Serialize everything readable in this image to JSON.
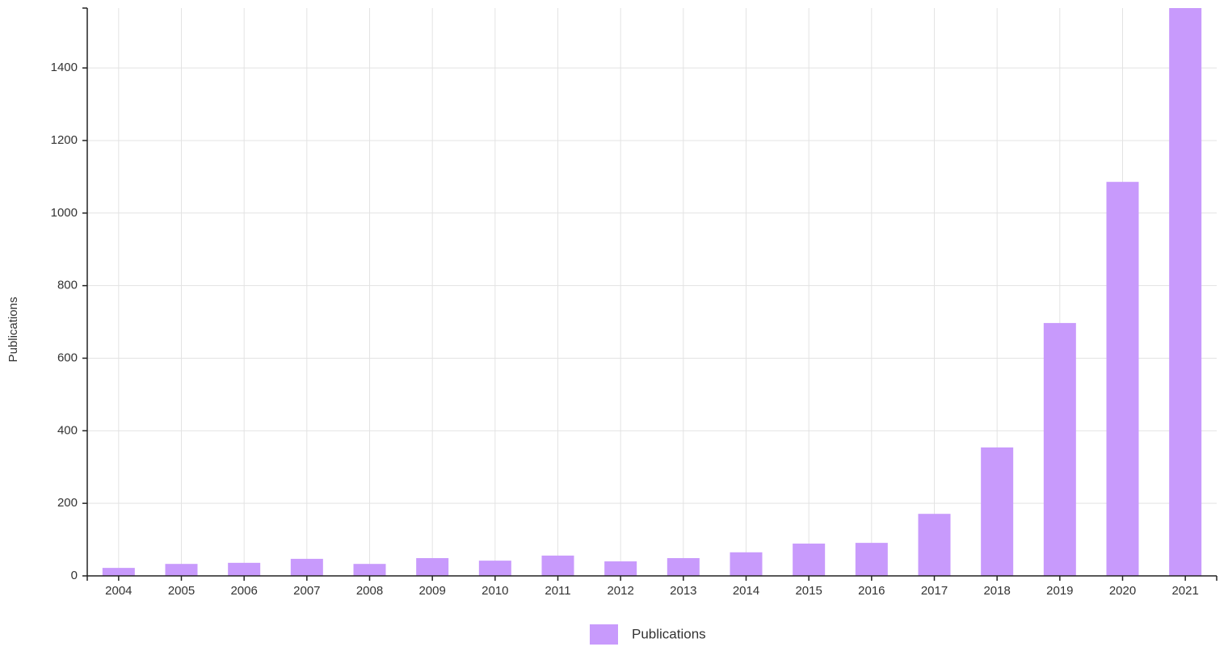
{
  "chart_data": {
    "type": "bar",
    "y_label": "Publications",
    "categories": [
      "2004",
      "2005",
      "2006",
      "2007",
      "2008",
      "2009",
      "2010",
      "2011",
      "2012",
      "2013",
      "2014",
      "2015",
      "2016",
      "2017",
      "2018",
      "2019",
      "2020",
      "2021"
    ],
    "series": [
      {
        "name": "Publications",
        "color": "#c89afc",
        "values": [
          22,
          33,
          36,
          47,
          33,
          49,
          42,
          56,
          40,
          49,
          65,
          89,
          91,
          171,
          354,
          697,
          1086,
          1565
        ]
      }
    ],
    "ylim": [
      0,
      1565
    ],
    "yticks": [
      0,
      200,
      400,
      600,
      800,
      1000,
      1200,
      1400
    ],
    "grid": true
  }
}
